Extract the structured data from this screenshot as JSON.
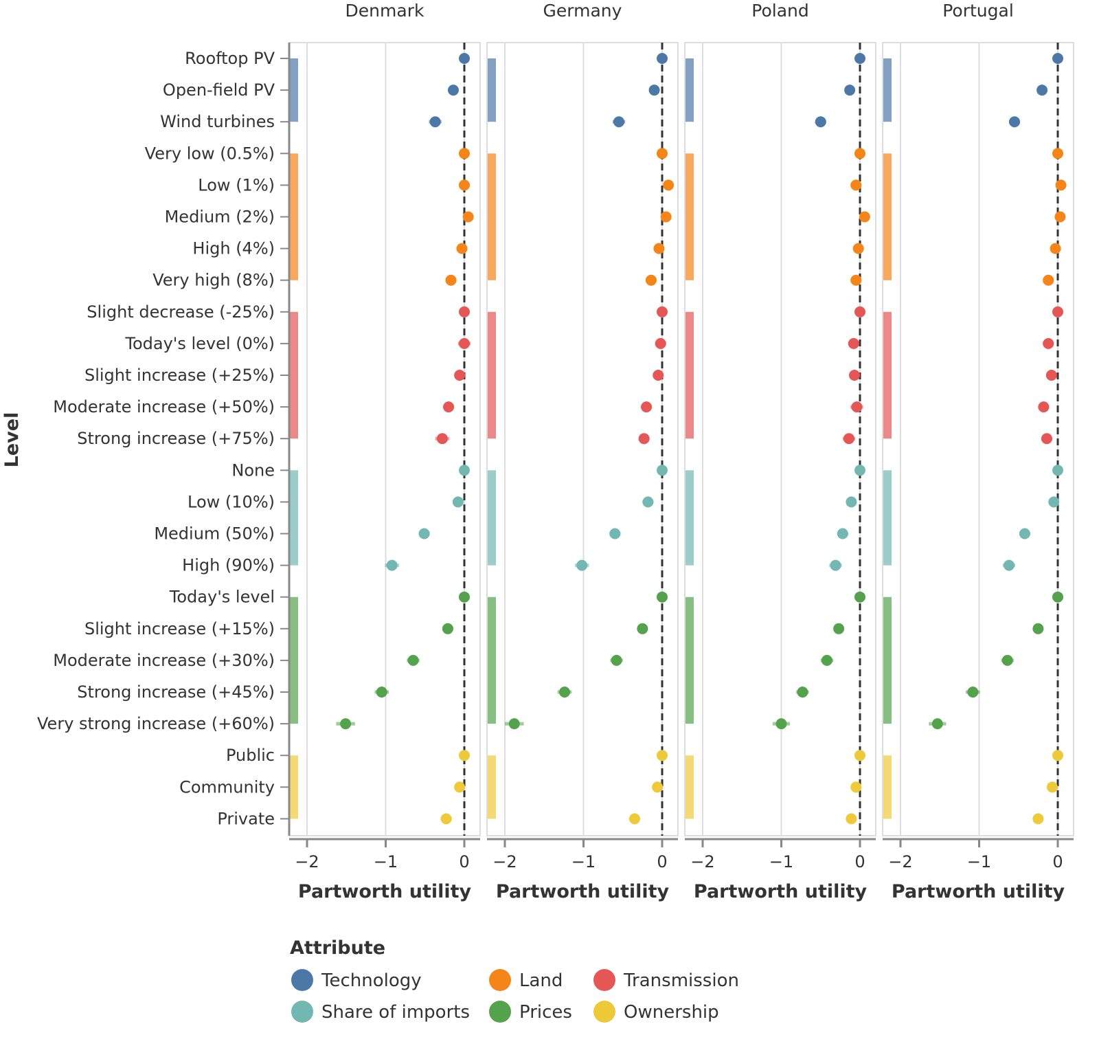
{
  "chart_data": {
    "type": "scatter",
    "subtype": "faceted dot plot with error bars",
    "ylabel": "Level",
    "xlabel": "Partworth utility",
    "xlim": [
      -2.2,
      0.2
    ],
    "xticks": [
      -2,
      -1,
      0
    ],
    "xtick_labels": [
      "−2",
      "−1",
      "0"
    ],
    "reference_line": {
      "x": 0,
      "style": "dashed"
    },
    "grid": true,
    "facets": [
      "Denmark",
      "Germany",
      "Poland",
      "Portugal"
    ],
    "legend": {
      "title": "Attribute",
      "placement": "bottom-left",
      "entries": [
        {
          "name": "Technology",
          "color": "#4C78A8"
        },
        {
          "name": "Land",
          "color": "#F58518"
        },
        {
          "name": "Transmission",
          "color": "#E45756"
        },
        {
          "name": "Share of imports",
          "color": "#72B7B2"
        },
        {
          "name": "Prices",
          "color": "#54A24B"
        },
        {
          "name": "Ownership",
          "color": "#EECA3B"
        }
      ]
    },
    "levels": [
      {
        "label": "Rooftop PV",
        "attribute": "Technology"
      },
      {
        "label": "Open-field PV",
        "attribute": "Technology"
      },
      {
        "label": "Wind turbines",
        "attribute": "Technology"
      },
      {
        "label": "Very low (0.5%)",
        "attribute": "Land"
      },
      {
        "label": "Low (1%)",
        "attribute": "Land"
      },
      {
        "label": "Medium (2%)",
        "attribute": "Land"
      },
      {
        "label": "High (4%)",
        "attribute": "Land"
      },
      {
        "label": "Very high (8%)",
        "attribute": "Land"
      },
      {
        "label": "Slight decrease (-25%)",
        "attribute": "Transmission"
      },
      {
        "label": "Today's level (0%)",
        "attribute": "Transmission"
      },
      {
        "label": "Slight increase (+25%)",
        "attribute": "Transmission"
      },
      {
        "label": "Moderate increase (+50%)",
        "attribute": "Transmission"
      },
      {
        "label": "Strong increase (+75%)",
        "attribute": "Transmission"
      },
      {
        "label": "None",
        "attribute": "Share of imports"
      },
      {
        "label": "Low (10%)",
        "attribute": "Share of imports"
      },
      {
        "label": "Medium (50%)",
        "attribute": "Share of imports"
      },
      {
        "label": "High (90%)",
        "attribute": "Share of imports"
      },
      {
        "label": "Today's level",
        "attribute": "Prices"
      },
      {
        "label": "Slight increase (+15%)",
        "attribute": "Prices"
      },
      {
        "label": "Moderate increase (+30%)",
        "attribute": "Prices"
      },
      {
        "label": "Strong increase (+45%)",
        "attribute": "Prices"
      },
      {
        "label": "Very strong increase (+60%)",
        "attribute": "Prices"
      },
      {
        "label": "Public",
        "attribute": "Ownership"
      },
      {
        "label": "Community",
        "attribute": "Ownership"
      },
      {
        "label": "Private",
        "attribute": "Ownership"
      }
    ],
    "series": [
      {
        "name": "Denmark",
        "values": [
          0,
          -0.14,
          -0.37,
          0,
          0.0,
          0.05,
          -0.03,
          -0.17,
          0,
          0.0,
          -0.06,
          -0.2,
          -0.28,
          0,
          -0.08,
          -0.51,
          -0.92,
          0,
          -0.21,
          -0.65,
          -1.05,
          -1.51,
          0,
          -0.06,
          -0.23
        ],
        "ci_halfwidth": [
          0,
          0.05,
          0.08,
          0,
          0.07,
          0.06,
          0.07,
          0.07,
          0,
          0.08,
          0.06,
          0.07,
          0.09,
          0,
          0.06,
          0.07,
          0.09,
          0,
          0.07,
          0.08,
          0.09,
          0.12,
          0,
          0.06,
          0.07
        ]
      },
      {
        "name": "Germany",
        "values": [
          0,
          -0.1,
          -0.55,
          0,
          0.08,
          0.05,
          -0.04,
          -0.14,
          0,
          -0.02,
          -0.05,
          -0.2,
          -0.23,
          0,
          -0.18,
          -0.6,
          -1.02,
          0,
          -0.25,
          -0.58,
          -1.24,
          -1.88,
          0,
          -0.06,
          -0.35
        ],
        "ci_halfwidth": [
          0,
          0.06,
          0.08,
          0,
          0.06,
          0.06,
          0.06,
          0.07,
          0,
          0.07,
          0.06,
          0.07,
          0.07,
          0,
          0.07,
          0.07,
          0.09,
          0,
          0.06,
          0.08,
          0.09,
          0.12,
          0,
          0.06,
          0.07
        ]
      },
      {
        "name": "Poland",
        "values": [
          0,
          -0.13,
          -0.5,
          0,
          -0.05,
          0.06,
          -0.02,
          -0.05,
          0,
          -0.08,
          -0.07,
          -0.04,
          -0.14,
          0,
          -0.11,
          -0.22,
          -0.31,
          0,
          -0.27,
          -0.42,
          -0.73,
          -1.0,
          0,
          -0.05,
          -0.11
        ],
        "ci_halfwidth": [
          0,
          0.05,
          0.07,
          0,
          0.07,
          0.06,
          0.06,
          0.07,
          0,
          0.07,
          0.06,
          0.08,
          0.08,
          0,
          0.06,
          0.07,
          0.08,
          0,
          0.06,
          0.08,
          0.08,
          0.11,
          0,
          0.06,
          0.07
        ]
      },
      {
        "name": "Portugal",
        "values": [
          0,
          -0.2,
          -0.55,
          0,
          0.04,
          0.03,
          -0.03,
          -0.12,
          0,
          -0.12,
          -0.08,
          -0.18,
          -0.14,
          0,
          -0.05,
          -0.42,
          -0.62,
          0,
          -0.25,
          -0.64,
          -1.08,
          -1.53,
          0,
          -0.07,
          -0.25
        ],
        "ci_halfwidth": [
          0,
          0.06,
          0.07,
          0,
          0.06,
          0.06,
          0.06,
          0.07,
          0,
          0.07,
          0.06,
          0.07,
          0.07,
          0,
          0.06,
          0.07,
          0.08,
          0,
          0.06,
          0.08,
          0.09,
          0.11,
          0,
          0.06,
          0.06
        ]
      }
    ]
  }
}
